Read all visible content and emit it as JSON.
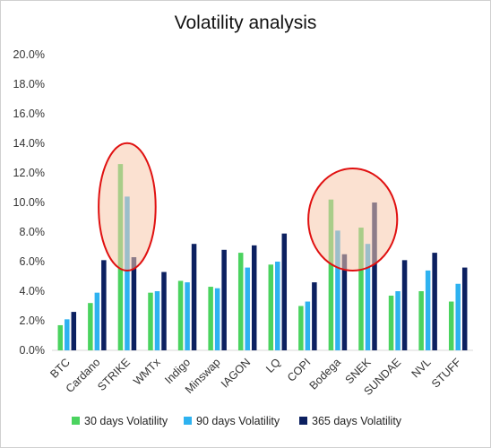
{
  "chart_data": {
    "type": "bar",
    "title": "Volatility analysis",
    "xlabel": "",
    "ylabel": "",
    "ylim": [
      0,
      0.2
    ],
    "yticks": [
      "0.0%",
      "2.0%",
      "4.0%",
      "6.0%",
      "8.0%",
      "10.0%",
      "12.0%",
      "14.0%",
      "16.0%",
      "18.0%",
      "20.0%"
    ],
    "grid": false,
    "legend_position": "bottom",
    "categories": [
      "BTC",
      "Cardano",
      "STRIKE",
      "WMTx",
      "Indigo",
      "Minswap",
      "IAGON",
      "LQ",
      "COPI",
      "Bodega",
      "SNEK",
      "SUNDAE",
      "NVL",
      "STUFF"
    ],
    "series": [
      {
        "name": "30 days Volatility",
        "color": "#4bd35f",
        "values": [
          0.017,
          0.032,
          0.126,
          0.039,
          0.047,
          0.043,
          0.066,
          0.058,
          0.03,
          0.102,
          0.083,
          0.037,
          0.04,
          0.033
        ]
      },
      {
        "name": "90 days Volatility",
        "color": "#2eb2f0",
        "values": [
          0.021,
          0.039,
          0.104,
          0.04,
          0.046,
          0.042,
          0.056,
          0.06,
          0.033,
          0.081,
          0.072,
          0.04,
          0.054,
          0.045
        ]
      },
      {
        "name": "365 days Volatility",
        "color": "#0c2060",
        "values": [
          0.026,
          0.061,
          0.063,
          0.053,
          0.072,
          0.068,
          0.071,
          0.079,
          0.046,
          0.065,
          0.1,
          0.061,
          0.066,
          0.056
        ]
      }
    ],
    "annotations": [
      {
        "type": "ellipse",
        "label": "highlight-strike",
        "x_from": "STRIKE",
        "x_to": "STRIKE",
        "y_range": [
          0.06,
          0.134
        ]
      },
      {
        "type": "ellipse",
        "label": "highlight-bodega-snek",
        "x_from": "Bodega",
        "x_to": "SNEK",
        "y_range": [
          0.06,
          0.117
        ]
      }
    ]
  }
}
